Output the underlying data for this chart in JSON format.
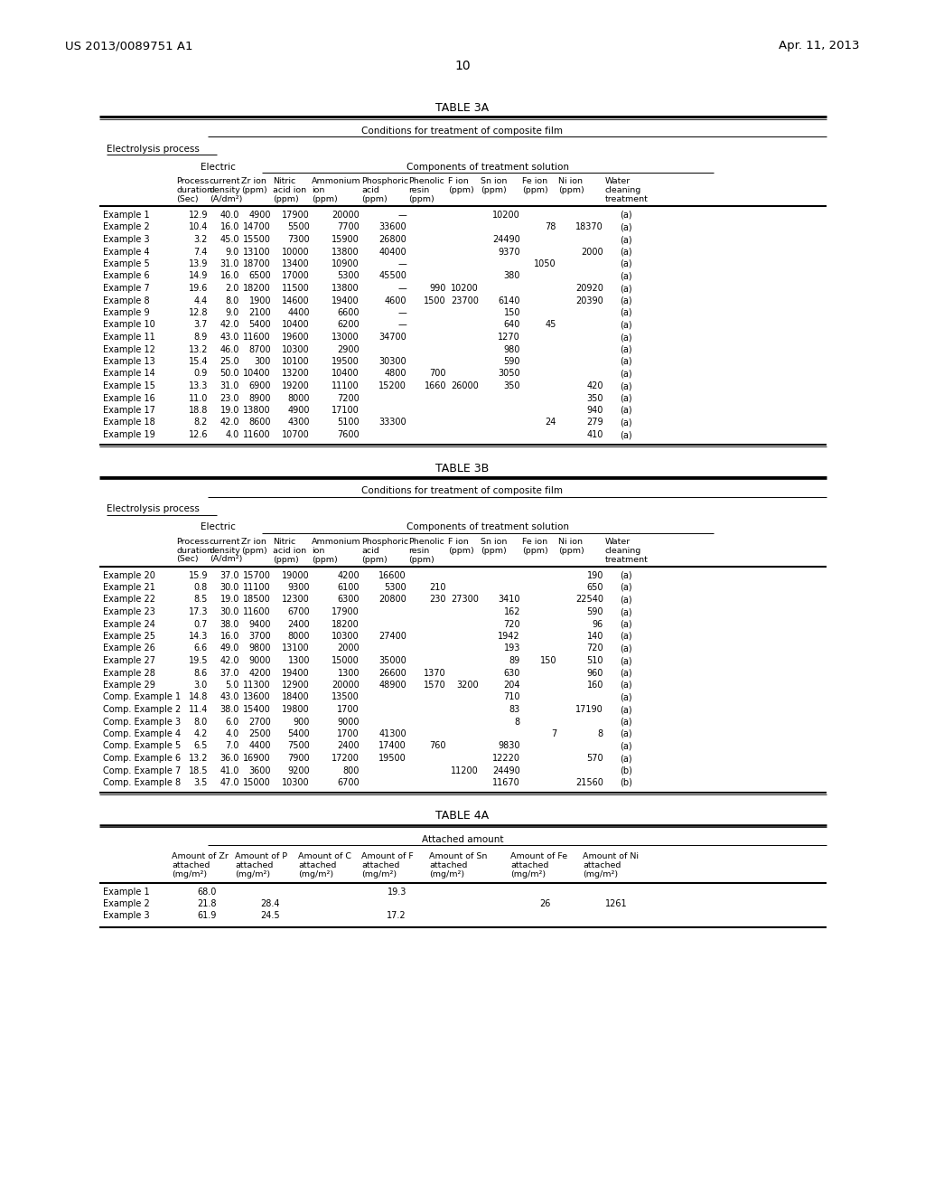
{
  "header_left": "US 2013/0089751 A1",
  "header_right": "Apr. 11, 2013",
  "page_number": "10",
  "bg_color": "#ffffff",
  "table3a_title": "TABLE 3A",
  "table3b_title": "TABLE 3B",
  "table4a_title": "TABLE 4A",
  "conditions_label": "Conditions for treatment of composite film",
  "electrolysis_label": "Electrolysis process",
  "electric_label": "Electric",
  "components_label": "Components of treatment solution",
  "attached_label": "Attached amount",
  "table3a_rows": [
    [
      "Example 1",
      "12.9",
      "40.0",
      "4900",
      "17900",
      "20000",
      "—",
      "",
      "",
      "10200",
      "",
      "",
      "(a)"
    ],
    [
      "Example 2",
      "10.4",
      "16.0",
      "14700",
      "5500",
      "7700",
      "33600",
      "",
      "",
      "",
      "78",
      "18370",
      "(a)"
    ],
    [
      "Example 3",
      "3.2",
      "45.0",
      "15500",
      "7300",
      "15900",
      "26800",
      "",
      "",
      "24490",
      "",
      "",
      "(a)"
    ],
    [
      "Example 4",
      "7.4",
      "9.0",
      "13100",
      "10000",
      "13800",
      "40400",
      "",
      "",
      "9370",
      "",
      "2000",
      "(a)"
    ],
    [
      "Example 5",
      "13.9",
      "31.0",
      "18700",
      "13400",
      "10900",
      "—",
      "",
      "",
      "",
      "1050",
      "",
      "(a)"
    ],
    [
      "Example 6",
      "14.9",
      "16.0",
      "6500",
      "17000",
      "5300",
      "45500",
      "",
      "",
      "380",
      "",
      "",
      "(a)"
    ],
    [
      "Example 7",
      "19.6",
      "2.0",
      "18200",
      "11500",
      "13800",
      "—",
      "990",
      "10200",
      "",
      "",
      "20920",
      "(a)"
    ],
    [
      "Example 8",
      "4.4",
      "8.0",
      "1900",
      "14600",
      "19400",
      "4600",
      "1500",
      "23700",
      "6140",
      "",
      "20390",
      "(a)"
    ],
    [
      "Example 9",
      "12.8",
      "9.0",
      "2100",
      "4400",
      "6600",
      "—",
      "",
      "",
      "150",
      "",
      "",
      "(a)"
    ],
    [
      "Example 10",
      "3.7",
      "42.0",
      "5400",
      "10400",
      "6200",
      "—",
      "",
      "",
      "640",
      "45",
      "",
      "(a)"
    ],
    [
      "Example 11",
      "8.9",
      "43.0",
      "11600",
      "19600",
      "13000",
      "34700",
      "",
      "",
      "1270",
      "",
      "",
      "(a)"
    ],
    [
      "Example 12",
      "13.2",
      "46.0",
      "8700",
      "10300",
      "2900",
      "",
      "",
      "",
      "980",
      "",
      "",
      "(a)"
    ],
    [
      "Example 13",
      "15.4",
      "25.0",
      "300",
      "10100",
      "19500",
      "30300",
      "",
      "",
      "590",
      "",
      "",
      "(a)"
    ],
    [
      "Example 14",
      "0.9",
      "50.0",
      "10400",
      "13200",
      "10400",
      "4800",
      "700",
      "",
      "3050",
      "",
      "",
      "(a)"
    ],
    [
      "Example 15",
      "13.3",
      "31.0",
      "6900",
      "19200",
      "11100",
      "15200",
      "1660",
      "26000",
      "350",
      "",
      "420",
      "(a)"
    ],
    [
      "Example 16",
      "11.0",
      "23.0",
      "8900",
      "8000",
      "7200",
      "",
      "",
      "",
      "",
      "",
      "350",
      "(a)"
    ],
    [
      "Example 17",
      "18.8",
      "19.0",
      "13800",
      "4900",
      "17100",
      "",
      "",
      "",
      "",
      "",
      "940",
      "(a)"
    ],
    [
      "Example 18",
      "8.2",
      "42.0",
      "8600",
      "4300",
      "5100",
      "33300",
      "",
      "",
      "",
      "24",
      "279",
      "(a)"
    ],
    [
      "Example 19",
      "12.6",
      "4.0",
      "11600",
      "10700",
      "7600",
      "",
      "",
      "",
      "",
      "",
      "410",
      "(a)"
    ]
  ],
  "table3b_rows": [
    [
      "Example 20",
      "15.9",
      "37.0",
      "15700",
      "19000",
      "4200",
      "16600",
      "",
      "",
      "",
      "",
      "190",
      "(a)"
    ],
    [
      "Example 21",
      "0.8",
      "30.0",
      "11100",
      "9300",
      "6100",
      "5300",
      "210",
      "",
      "",
      "",
      "650",
      "(a)"
    ],
    [
      "Example 22",
      "8.5",
      "19.0",
      "18500",
      "12300",
      "6300",
      "20800",
      "230",
      "27300",
      "3410",
      "",
      "22540",
      "(a)"
    ],
    [
      "Example 23",
      "17.3",
      "30.0",
      "11600",
      "6700",
      "17900",
      "",
      "",
      "",
      "162",
      "",
      "590",
      "(a)"
    ],
    [
      "Example 24",
      "0.7",
      "38.0",
      "9400",
      "2400",
      "18200",
      "",
      "",
      "",
      "720",
      "",
      "96",
      "(a)"
    ],
    [
      "Example 25",
      "14.3",
      "16.0",
      "3700",
      "8000",
      "10300",
      "27400",
      "",
      "",
      "1942",
      "",
      "140",
      "(a)"
    ],
    [
      "Example 26",
      "6.6",
      "49.0",
      "9800",
      "13100",
      "2000",
      "",
      "",
      "",
      "193",
      "",
      "720",
      "(a)"
    ],
    [
      "Example 27",
      "19.5",
      "42.0",
      "9000",
      "1300",
      "15000",
      "35000",
      "",
      "",
      "89",
      "150",
      "510",
      "(a)"
    ],
    [
      "Example 28",
      "8.6",
      "37.0",
      "4200",
      "19400",
      "1300",
      "26600",
      "1370",
      "",
      "630",
      "",
      "960",
      "(a)"
    ],
    [
      "Example 29",
      "3.0",
      "5.0",
      "11300",
      "12900",
      "20000",
      "48900",
      "1570",
      "3200",
      "204",
      "",
      "160",
      "(a)"
    ],
    [
      "Comp. Example 1",
      "14.8",
      "43.0",
      "13600",
      "18400",
      "13500",
      "",
      "",
      "",
      "710",
      "",
      "",
      "(a)"
    ],
    [
      "Comp. Example 2",
      "11.4",
      "38.0",
      "15400",
      "19800",
      "1700",
      "",
      "",
      "",
      "83",
      "",
      "17190",
      "(a)"
    ],
    [
      "Comp. Example 3",
      "8.0",
      "6.0",
      "2700",
      "900",
      "9000",
      "",
      "",
      "",
      "8",
      "",
      "",
      "(a)"
    ],
    [
      "Comp. Example 4",
      "4.2",
      "4.0",
      "2500",
      "5400",
      "1700",
      "41300",
      "",
      "",
      "",
      "7",
      "8",
      "(a)"
    ],
    [
      "Comp. Example 5",
      "6.5",
      "7.0",
      "4400",
      "7500",
      "2400",
      "17400",
      "760",
      "",
      "9830",
      "",
      "",
      "(a)"
    ],
    [
      "Comp. Example 6",
      "13.2",
      "36.0",
      "16900",
      "7900",
      "17200",
      "19500",
      "",
      "",
      "12220",
      "",
      "570",
      "(a)"
    ],
    [
      "Comp. Example 7",
      "18.5",
      "41.0",
      "3600",
      "9200",
      "800",
      "",
      "",
      "11200",
      "24490",
      "",
      "",
      "(b)"
    ],
    [
      "Comp. Example 8",
      "3.5",
      "47.0",
      "15000",
      "10300",
      "6700",
      "",
      "",
      "",
      "11670",
      "",
      "21560",
      "(b)"
    ]
  ],
  "table4a_rows": [
    [
      "Example 1",
      "68.0",
      "",
      "",
      "19.3",
      "",
      "",
      ""
    ],
    [
      "Example 2",
      "21.8",
      "28.4",
      "",
      "",
      "",
      "26",
      "1261"
    ],
    [
      "Example 3",
      "61.9",
      "24.5",
      "",
      "17.2",
      "",
      "",
      ""
    ]
  ]
}
